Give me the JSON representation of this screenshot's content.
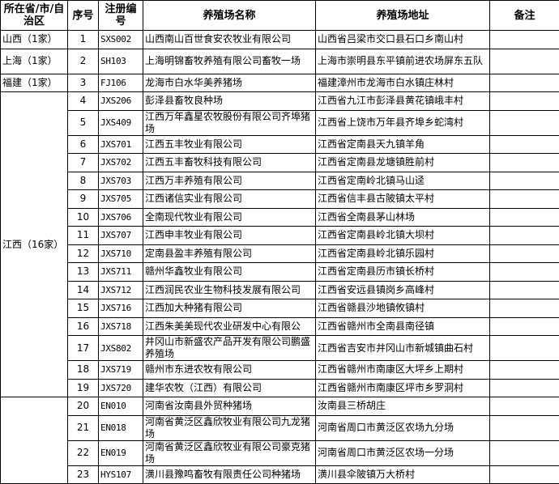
{
  "table": {
    "headers": [
      "所在省/市/自治区",
      "序号",
      "注册编号",
      "养殖场名称",
      "养殖场地址",
      "备注"
    ],
    "groups": [
      {
        "region": "山西（1家）",
        "rows": [
          {
            "no": "1",
            "code": "SXS002",
            "name": "山西南山百世食安农牧业有限公司",
            "address": "山西省吕梁市交口县石口乡南山村",
            "note": ""
          }
        ]
      },
      {
        "region": "上海（1家）",
        "rows": [
          {
            "no": "2",
            "code": "SH103",
            "name": "上海明锦畜牧养殖有限公司畜牧一场",
            "address": "上海市崇明县东平镇前进农场屏东五队",
            "note": ""
          }
        ]
      },
      {
        "region": "福建（1家）",
        "rows": [
          {
            "no": "3",
            "code": "FJ106",
            "name": "龙海市白水华美养猪场",
            "address": "福建漳州市龙海市白水镇庄林村",
            "note": ""
          }
        ]
      },
      {
        "region": "江西（16家）",
        "rows": [
          {
            "no": "4",
            "code": "JXS206",
            "name": "彭泽县畜牧良种场",
            "address": "江西省九江市彭泽县黄花镇峨丰村",
            "note": ""
          },
          {
            "no": "5",
            "code": "JXS409",
            "name": "江西万年鑫星农牧股份有限公司齐埠猪场",
            "address": "江西省上饶市万年县齐埠乡蛇湾村",
            "note": ""
          },
          {
            "no": "6",
            "code": "JXS701",
            "name": "江西五丰牧业有限公司",
            "address": "江西省定南县天九镇羊角",
            "note": ""
          },
          {
            "no": "7",
            "code": "JXS702",
            "name": "江西五丰畜牧科技有限公司",
            "address": "江西省定南县龙塘镇胜前村",
            "note": ""
          },
          {
            "no": "8",
            "code": "JXS703",
            "name": "江西万丰养殖有限公司",
            "address": "江西省定南岭北镇马山迳",
            "note": ""
          },
          {
            "no": "9",
            "code": "JXS705",
            "name": "江西诸信实业有限公司",
            "address": "江西省信丰县古陂镇太平村",
            "note": ""
          },
          {
            "no": "10",
            "code": "JXS706",
            "name": "全南现代牧业有限公司",
            "address": "江西省全南县茅山林场",
            "note": ""
          },
          {
            "no": "11",
            "code": "JXS707",
            "name": "江西申丰牧业有限公司",
            "address": "江西省定南县岭北镇大坝村",
            "note": ""
          },
          {
            "no": "12",
            "code": "JXS710",
            "name": "定南县盈丰养殖有限公司",
            "address": "江西省定南县岭北镇乐园村",
            "note": ""
          },
          {
            "no": "13",
            "code": "JXS711",
            "name": "赣州华鑫牧业有限公司",
            "address": "江西省定南县历市镇长桥村",
            "note": ""
          },
          {
            "no": "14",
            "code": "JXS712",
            "name": "江西润民农业生物科技发展有限公司",
            "address": "江西省安远县镇岗乡高峰村",
            "note": ""
          },
          {
            "no": "15",
            "code": "JXS716",
            "name": "江西加大种猪有限公司",
            "address": "江西省赣县沙地镇攸镇村",
            "note": ""
          },
          {
            "no": "16",
            "code": "JXS718",
            "name": "江西朱美美现代农业研发中心有限公",
            "address": "江西省赣州市全南县南径镇",
            "note": ""
          },
          {
            "no": "17",
            "code": "JXS802",
            "name": "井冈山市新盛农产品开发有限公司鹏盛养殖场",
            "address": "江西省吉安市井冈山市新城镇曲石村",
            "note": ""
          },
          {
            "no": "18",
            "code": "JXS719",
            "name": "赣州市东进农牧有限公司",
            "address": "江西省赣州市南康区大坪乡上期村",
            "note": ""
          },
          {
            "no": "19",
            "code": "JXS720",
            "name": "建华农牧（江西）有限公司",
            "address": "江西省赣州市南康区坪市乡罗洞村",
            "note": ""
          }
        ]
      },
      {
        "region": "",
        "rows": [
          {
            "no": "20",
            "code": "EN010",
            "name": "河南省汝南县外贸种猪场",
            "address": "汝南县三桥胡庄",
            "note": ""
          },
          {
            "no": "21",
            "code": "EN018",
            "name": "河南省黄泛区鑫欣牧业有限公司九龙猪场",
            "address": "河南省周口市黄泛区农场九分场",
            "note": ""
          },
          {
            "no": "22",
            "code": "EN019",
            "name": "河南省黄泛区鑫欣牧业有限公司豪克猪场",
            "address": "河南省周口市黄泛区农场一分场",
            "note": ""
          },
          {
            "no": "23",
            "code": "HYS107",
            "name": "潢川县豫鸣畜牧有限责任公司种猪场",
            "address": "潢川县伞陂镇万大桥村",
            "note": ""
          }
        ]
      }
    ]
  }
}
